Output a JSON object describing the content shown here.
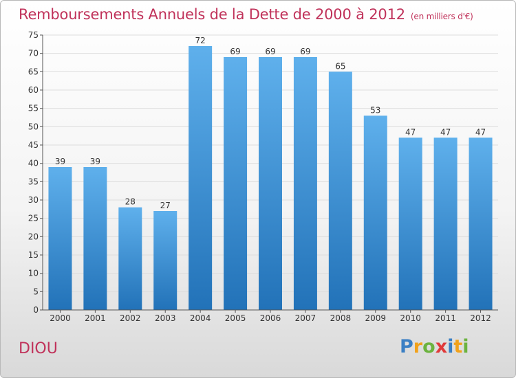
{
  "header": {
    "title": "Remboursements Annuels de la Dette de 2000 à 2012",
    "unit": "(en milliers d'€)"
  },
  "footer": {
    "commune": "DIOU",
    "logo_letters": [
      {
        "char": "P",
        "color": "#3a7fc4"
      },
      {
        "char": "r",
        "color": "#f2a21b"
      },
      {
        "char": "o",
        "color": "#6cb33f"
      },
      {
        "char": "x",
        "color": "#e03a3a"
      },
      {
        "char": "i",
        "color": "#3a7fc4"
      },
      {
        "char": "t",
        "color": "#f2a21b"
      },
      {
        "char": "i",
        "color": "#6cb33f"
      }
    ]
  },
  "colors": {
    "title": "#c0325a",
    "bar_top": "#5fb0ec",
    "bar_bottom": "#2272b8",
    "grid": "#dddddd",
    "axis": "#555555"
  },
  "chart_data": {
    "type": "bar",
    "categories": [
      "2000",
      "2001",
      "2002",
      "2003",
      "2004",
      "2005",
      "2006",
      "2007",
      "2008",
      "2009",
      "2010",
      "2011",
      "2012"
    ],
    "values": [
      39,
      39,
      28,
      27,
      72,
      69,
      69,
      69,
      65,
      53,
      47,
      47,
      47
    ],
    "ylim": [
      0,
      75
    ],
    "yticks": [
      0,
      5,
      10,
      15,
      20,
      25,
      30,
      35,
      40,
      45,
      50,
      55,
      60,
      65,
      70,
      75
    ],
    "grid": true,
    "data_labels": true
  }
}
